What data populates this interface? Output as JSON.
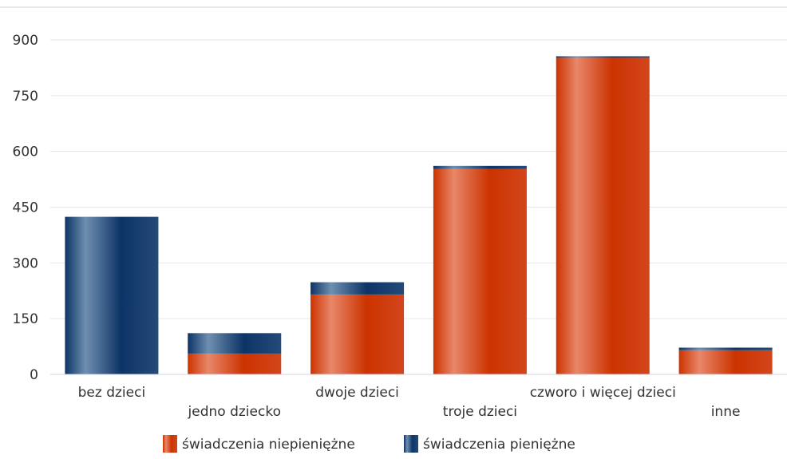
{
  "chart_data": {
    "type": "bar",
    "stacked": true,
    "categories": [
      "bez dzieci",
      "jedno dziecko",
      "dwoje dzieci",
      "troje dzieci",
      "czworo i więcej dzieci",
      "inne"
    ],
    "series": [
      {
        "name": "świadczenia niepieniężne",
        "values": [
          0,
          56,
          215,
          553,
          852,
          65
        ]
      },
      {
        "name": "świadczenia pieniężne",
        "values": [
          424,
          55,
          33,
          8,
          4,
          7
        ]
      }
    ],
    "yticks": [
      0,
      150,
      300,
      450,
      600,
      750,
      900
    ],
    "ylim": [
      0,
      900
    ],
    "grid": true,
    "legend_position": "bottom",
    "colors": {
      "orange_light": "#e8876a",
      "orange_dark": "#cc3300",
      "blue_light": "#6f8fb0",
      "blue_dark": "#0d3466",
      "axis": "#d6d6e6",
      "grid": "#e6e6e6"
    }
  }
}
